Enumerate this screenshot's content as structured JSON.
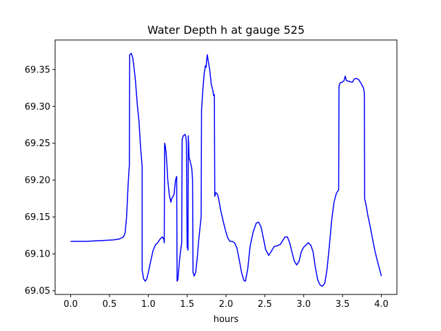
{
  "chart_data": {
    "type": "line",
    "title": "Water Depth h at gauge 525",
    "xlabel": "hours",
    "ylabel": "",
    "xlim": [
      -0.2,
      4.2
    ],
    "ylim": [
      69.045,
      69.39
    ],
    "xticks": [
      0.0,
      0.5,
      1.0,
      1.5,
      2.0,
      2.5,
      3.0,
      3.5,
      4.0
    ],
    "xtick_labels": [
      "0.0",
      "0.5",
      "1.0",
      "1.5",
      "2.0",
      "2.5",
      "3.0",
      "3.5",
      "4.0"
    ],
    "yticks": [
      69.05,
      69.1,
      69.15,
      69.2,
      69.25,
      69.3,
      69.35
    ],
    "ytick_labels": [
      "69.05",
      "69.10",
      "69.15",
      "69.20",
      "69.25",
      "69.30",
      "69.35"
    ],
    "grid": false,
    "series": [
      {
        "color": "#0000ff",
        "points": [
          [
            0.0,
            69.117
          ],
          [
            0.2,
            69.117
          ],
          [
            0.4,
            69.118
          ],
          [
            0.55,
            69.119
          ],
          [
            0.62,
            69.12
          ],
          [
            0.68,
            69.123
          ],
          [
            0.7,
            69.128
          ],
          [
            0.72,
            69.15
          ],
          [
            0.74,
            69.195
          ],
          [
            0.755,
            69.22
          ],
          [
            0.76,
            69.37
          ],
          [
            0.78,
            69.372
          ],
          [
            0.8,
            69.366
          ],
          [
            0.83,
            69.34
          ],
          [
            0.86,
            69.3
          ],
          [
            0.88,
            69.28
          ],
          [
            0.9,
            69.245
          ],
          [
            0.92,
            69.218
          ],
          [
            0.92,
            69.078
          ],
          [
            0.94,
            69.066
          ],
          [
            0.96,
            69.063
          ],
          [
            0.98,
            69.066
          ],
          [
            1.0,
            69.075
          ],
          [
            1.03,
            69.09
          ],
          [
            1.06,
            69.104
          ],
          [
            1.09,
            69.112
          ],
          [
            1.12,
            69.115
          ],
          [
            1.15,
            69.12
          ],
          [
            1.18,
            69.123
          ],
          [
            1.2,
            69.12
          ],
          [
            1.205,
            69.115
          ],
          [
            1.21,
            69.25
          ],
          [
            1.22,
            69.245
          ],
          [
            1.23,
            69.235
          ],
          [
            1.24,
            69.22
          ],
          [
            1.25,
            69.2
          ],
          [
            1.27,
            69.18
          ],
          [
            1.29,
            69.17
          ],
          [
            1.3,
            69.175
          ],
          [
            1.33,
            69.18
          ],
          [
            1.35,
            69.2
          ],
          [
            1.365,
            69.205
          ],
          [
            1.37,
            69.063
          ],
          [
            1.38,
            69.065
          ],
          [
            1.4,
            69.09
          ],
          [
            1.41,
            69.1
          ],
          [
            1.43,
            69.115
          ],
          [
            1.435,
            69.255
          ],
          [
            1.45,
            69.26
          ],
          [
            1.47,
            69.262
          ],
          [
            1.48,
            69.26
          ],
          [
            1.49,
            69.252
          ],
          [
            1.5,
            69.11
          ],
          [
            1.51,
            69.105
          ],
          [
            1.515,
            69.26
          ],
          [
            1.525,
            69.23
          ],
          [
            1.54,
            69.225
          ],
          [
            1.55,
            69.22
          ],
          [
            1.56,
            69.215
          ],
          [
            1.57,
            69.2
          ],
          [
            1.575,
            69.075
          ],
          [
            1.59,
            69.07
          ],
          [
            1.61,
            69.075
          ],
          [
            1.63,
            69.095
          ],
          [
            1.65,
            69.12
          ],
          [
            1.68,
            69.15
          ],
          [
            1.685,
            69.295
          ],
          [
            1.7,
            69.32
          ],
          [
            1.72,
            69.345
          ],
          [
            1.735,
            69.355
          ],
          [
            1.745,
            69.353
          ],
          [
            1.75,
            69.362
          ],
          [
            1.76,
            69.37
          ],
          [
            1.77,
            69.362
          ],
          [
            1.79,
            69.35
          ],
          [
            1.81,
            69.33
          ],
          [
            1.83,
            69.322
          ],
          [
            1.84,
            69.315
          ],
          [
            1.85,
            69.316
          ],
          [
            1.855,
            69.178
          ],
          [
            1.87,
            69.183
          ],
          [
            1.89,
            69.181
          ],
          [
            1.91,
            69.172
          ],
          [
            1.93,
            69.16
          ],
          [
            1.96,
            69.146
          ],
          [
            1.99,
            69.133
          ],
          [
            2.02,
            69.122
          ],
          [
            2.05,
            69.117
          ],
          [
            2.08,
            69.117
          ],
          [
            2.11,
            69.115
          ],
          [
            2.14,
            69.108
          ],
          [
            2.17,
            69.092
          ],
          [
            2.2,
            69.075
          ],
          [
            2.23,
            69.064
          ],
          [
            2.25,
            69.063
          ],
          [
            2.28,
            69.08
          ],
          [
            2.31,
            69.11
          ],
          [
            2.35,
            69.13
          ],
          [
            2.39,
            69.142
          ],
          [
            2.42,
            69.143
          ],
          [
            2.45,
            69.137
          ],
          [
            2.48,
            69.122
          ],
          [
            2.51,
            69.106
          ],
          [
            2.55,
            69.098
          ],
          [
            2.58,
            69.103
          ],
          [
            2.62,
            69.11
          ],
          [
            2.66,
            69.111
          ],
          [
            2.7,
            69.113
          ],
          [
            2.73,
            69.118
          ],
          [
            2.76,
            69.123
          ],
          [
            2.79,
            69.123
          ],
          [
            2.82,
            69.115
          ],
          [
            2.85,
            69.102
          ],
          [
            2.88,
            69.09
          ],
          [
            2.91,
            69.085
          ],
          [
            2.94,
            69.09
          ],
          [
            2.97,
            69.103
          ],
          [
            3.0,
            69.109
          ],
          [
            3.03,
            69.112
          ],
          [
            3.06,
            69.115
          ],
          [
            3.09,
            69.112
          ],
          [
            3.12,
            69.103
          ],
          [
            3.15,
            69.082
          ],
          [
            3.18,
            69.065
          ],
          [
            3.21,
            69.058
          ],
          [
            3.24,
            69.056
          ],
          [
            3.27,
            69.06
          ],
          [
            3.3,
            69.078
          ],
          [
            3.33,
            69.11
          ],
          [
            3.36,
            69.145
          ],
          [
            3.39,
            69.17
          ],
          [
            3.42,
            69.182
          ],
          [
            3.45,
            69.187
          ],
          [
            3.455,
            69.328
          ],
          [
            3.47,
            69.332
          ],
          [
            3.5,
            69.333
          ],
          [
            3.52,
            69.335
          ],
          [
            3.535,
            69.341
          ],
          [
            3.55,
            69.335
          ],
          [
            3.58,
            69.334
          ],
          [
            3.61,
            69.333
          ],
          [
            3.63,
            69.333
          ],
          [
            3.65,
            69.337
          ],
          [
            3.68,
            69.338
          ],
          [
            3.71,
            69.336
          ],
          [
            3.74,
            69.331
          ],
          [
            3.77,
            69.325
          ],
          [
            3.78,
            69.318
          ],
          [
            3.785,
            69.175
          ],
          [
            3.8,
            69.168
          ],
          [
            3.83,
            69.15
          ],
          [
            3.86,
            69.135
          ],
          [
            3.89,
            69.118
          ],
          [
            3.92,
            69.103
          ],
          [
            3.95,
            69.09
          ],
          [
            3.98,
            69.078
          ],
          [
            4.0,
            69.07
          ]
        ]
      }
    ]
  }
}
